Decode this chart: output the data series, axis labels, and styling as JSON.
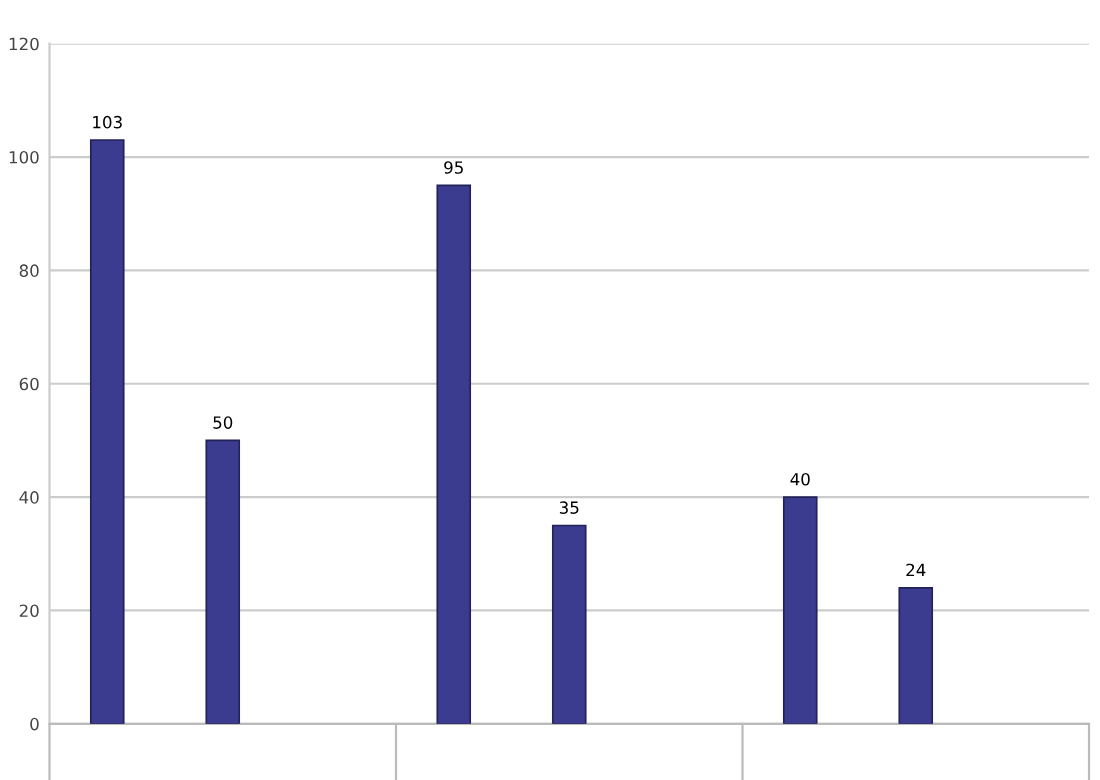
{
  "chart_data": {
    "type": "bar",
    "categories": [
      null,
      null,
      null
    ],
    "series": [
      {
        "color": "#3b3b8f",
        "values": [
          103,
          95,
          40
        ]
      },
      {
        "color": "#3b3b8f",
        "values": [
          50,
          35,
          24
        ]
      }
    ],
    "ylim": [
      0,
      120
    ],
    "yticks": [
      0,
      20,
      40,
      60,
      80,
      100,
      120
    ],
    "grid": "y",
    "data_labels": true
  }
}
